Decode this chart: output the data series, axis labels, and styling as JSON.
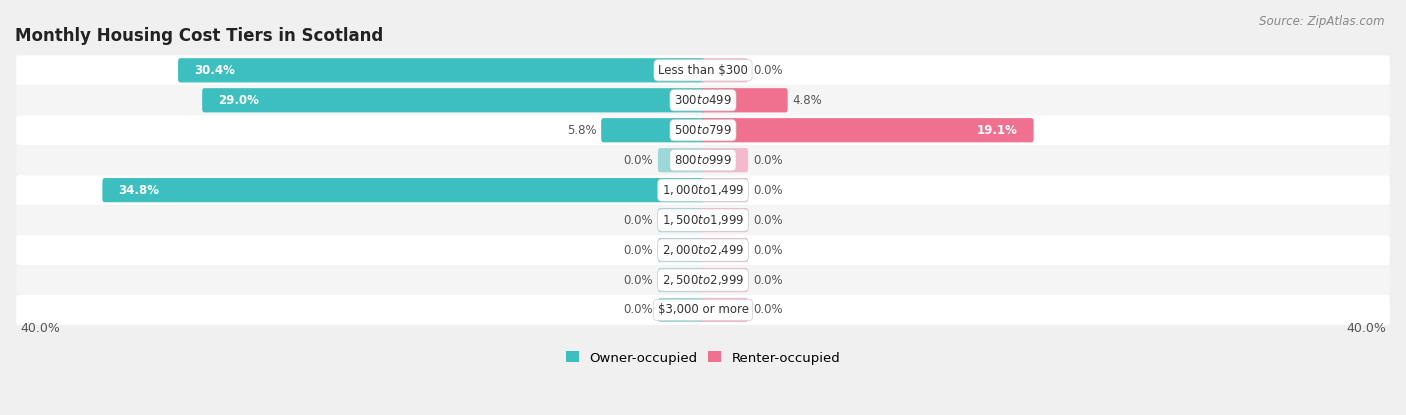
{
  "title": "Monthly Housing Cost Tiers in Scotland",
  "source": "Source: ZipAtlas.com",
  "categories": [
    "Less than $300",
    "$300 to $499",
    "$500 to $799",
    "$800 to $999",
    "$1,000 to $1,499",
    "$1,500 to $1,999",
    "$2,000 to $2,499",
    "$2,500 to $2,999",
    "$3,000 or more"
  ],
  "owner_values": [
    30.4,
    29.0,
    5.8,
    0.0,
    34.8,
    0.0,
    0.0,
    0.0,
    0.0
  ],
  "renter_values": [
    0.0,
    4.8,
    19.1,
    0.0,
    0.0,
    0.0,
    0.0,
    0.0,
    0.0
  ],
  "owner_color": "#3dbfbf",
  "renter_color": "#f07090",
  "owner_color_light": "#9dd8d8",
  "renter_color_light": "#f5b8cc",
  "axis_max": 40.0,
  "background_color": "#f0f0f0",
  "row_bg_even": "#ffffff",
  "row_bg_odd": "#f5f5f5",
  "title_fontsize": 12,
  "source_fontsize": 8.5,
  "bar_label_fontsize": 8.5,
  "category_fontsize": 8.5,
  "legend_fontsize": 9.5,
  "axis_label_fontsize": 9
}
